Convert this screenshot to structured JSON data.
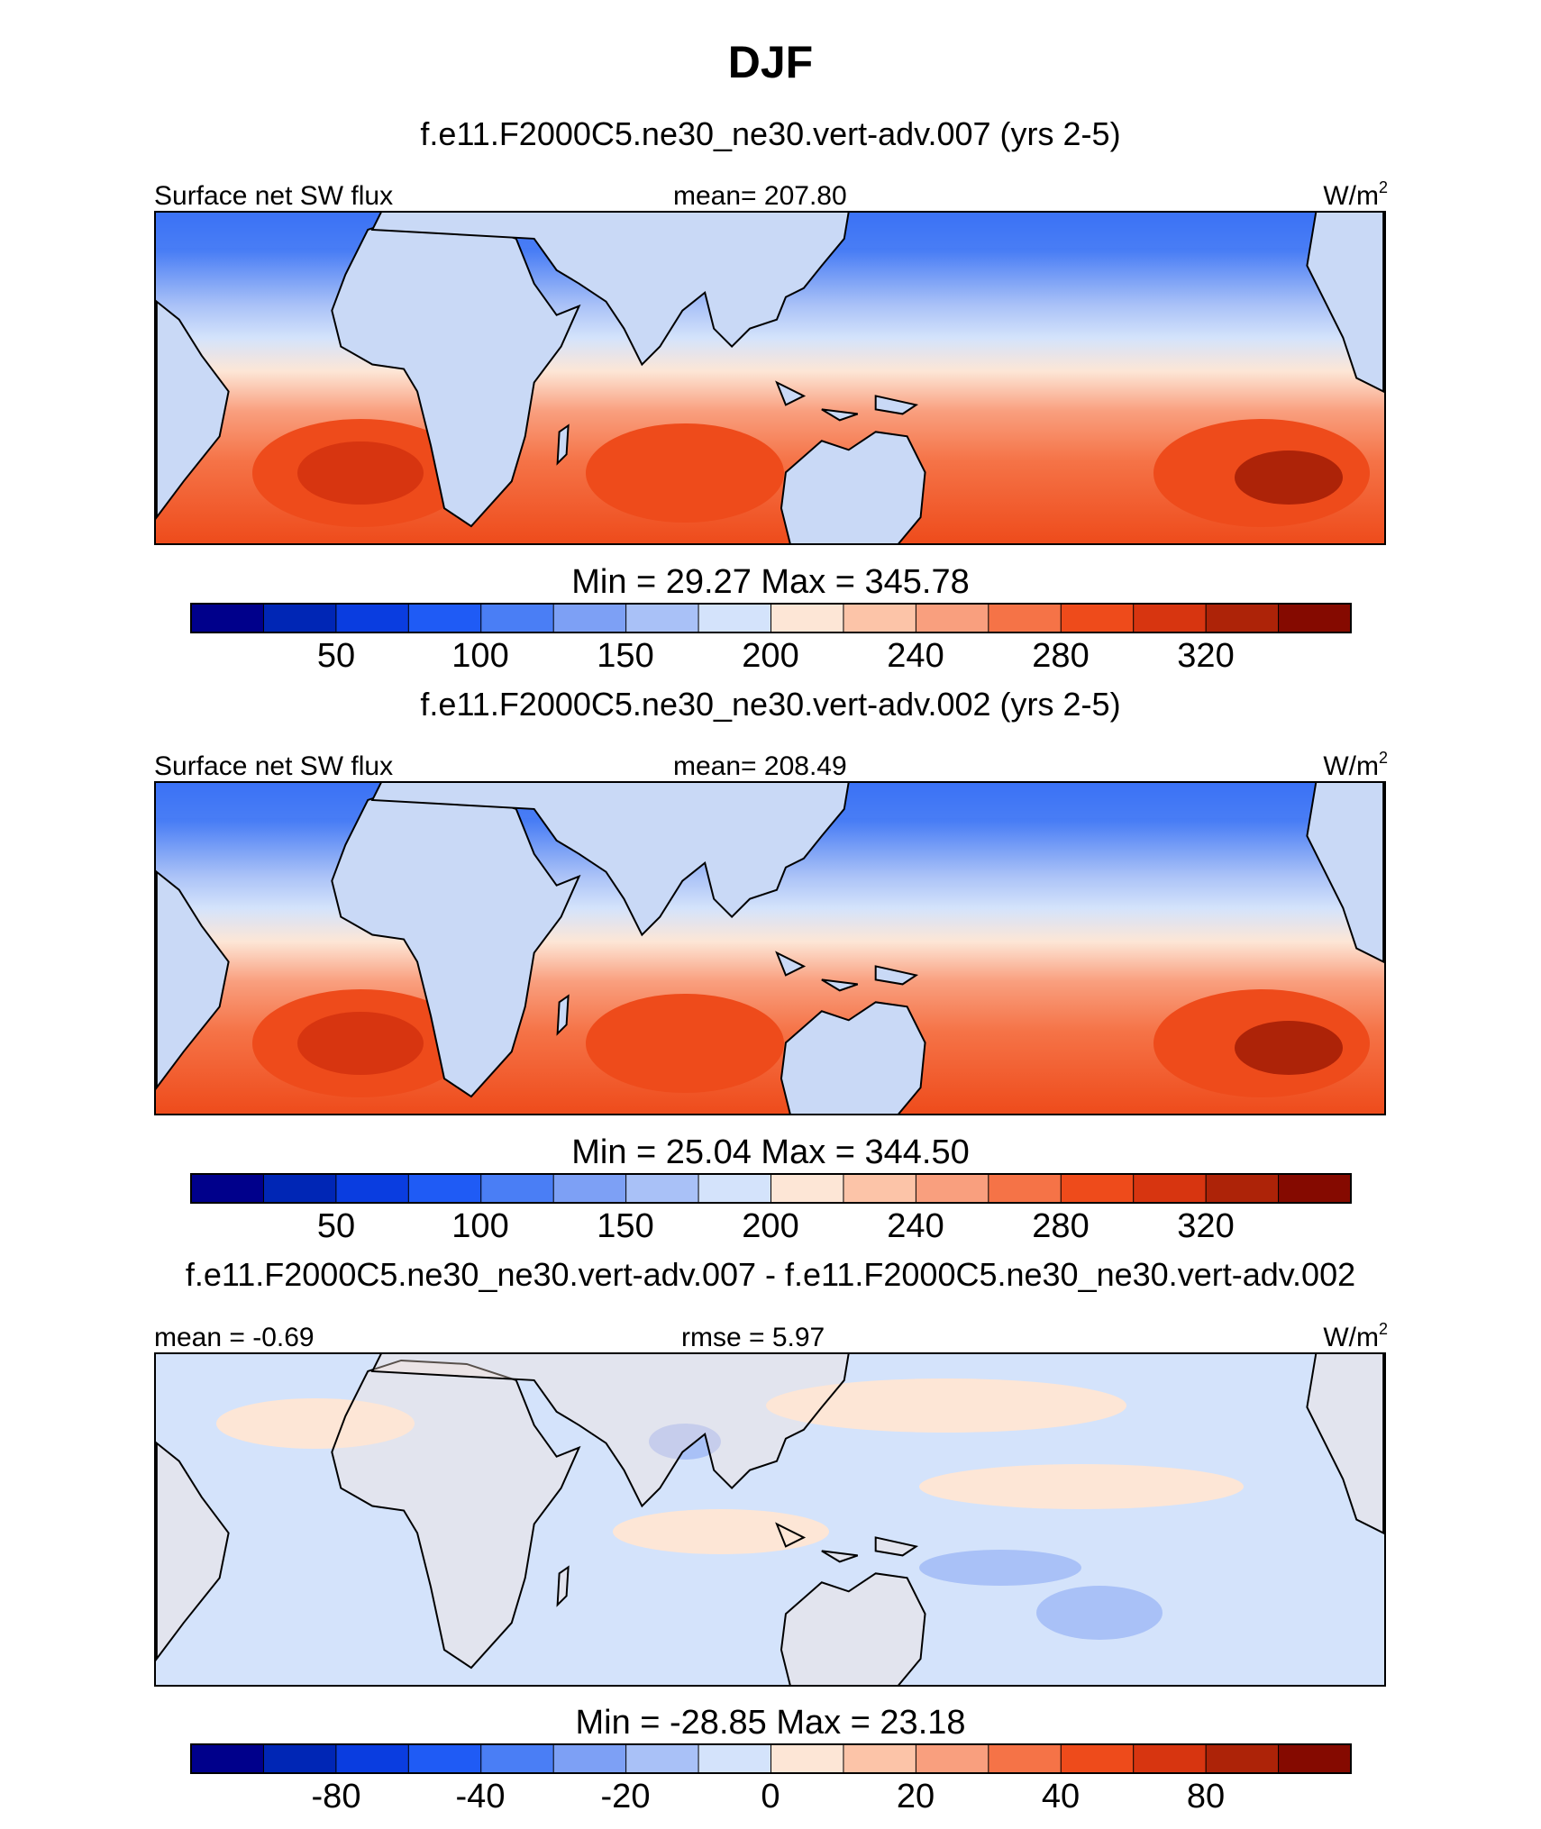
{
  "chart_data": {
    "type": "heatmap",
    "title": "DJF",
    "panels": [
      {
        "id": "test",
        "case": "f.e11.F2000C5.ne30_ne30.vert-adv.007 (yrs 2-5)",
        "left_label": "Surface net SW flux",
        "center_label": "mean= 207.80",
        "units_base": "W/m",
        "units_sup": "2",
        "field": "absolute",
        "stats": "Min =  29.27 Max = 345.78",
        "colorbar": {
          "ticks": [
            "50",
            "100",
            "150",
            "200",
            "240",
            "280",
            "320"
          ]
        }
      },
      {
        "id": "control",
        "case": "f.e11.F2000C5.ne30_ne30.vert-adv.002 (yrs 2-5)",
        "left_label": "Surface net SW flux",
        "center_label": "mean= 208.49",
        "units_base": "W/m",
        "units_sup": "2",
        "field": "absolute",
        "stats": "Min =  25.04 Max = 344.50",
        "colorbar": {
          "ticks": [
            "50",
            "100",
            "150",
            "200",
            "240",
            "280",
            "320"
          ]
        }
      },
      {
        "id": "difference",
        "case": "f.e11.F2000C5.ne30_ne30.vert-adv.007 - f.e11.F2000C5.ne30_ne30.vert-adv.002",
        "left_label": "mean =  -0.69",
        "center_label": "rmse =   5.97",
        "units_base": "W/m",
        "units_sup": "2",
        "field": "difference",
        "stats": "Min = -28.85 Max =  23.18",
        "colorbar": {
          "ticks": [
            "-80",
            "-40",
            "-20",
            "0",
            "20",
            "40",
            "80"
          ]
        }
      }
    ],
    "colormap": [
      "#00008b",
      "#0026b5",
      "#0a3de0",
      "#1f5bf5",
      "#4a7ef5",
      "#7da0f5",
      "#a9c1f7",
      "#d4e3fb",
      "#fde6d6",
      "#fcc4a8",
      "#f99f7e",
      "#f57347",
      "#ee4b1b",
      "#d73510",
      "#ad2308",
      "#850a00"
    ]
  }
}
